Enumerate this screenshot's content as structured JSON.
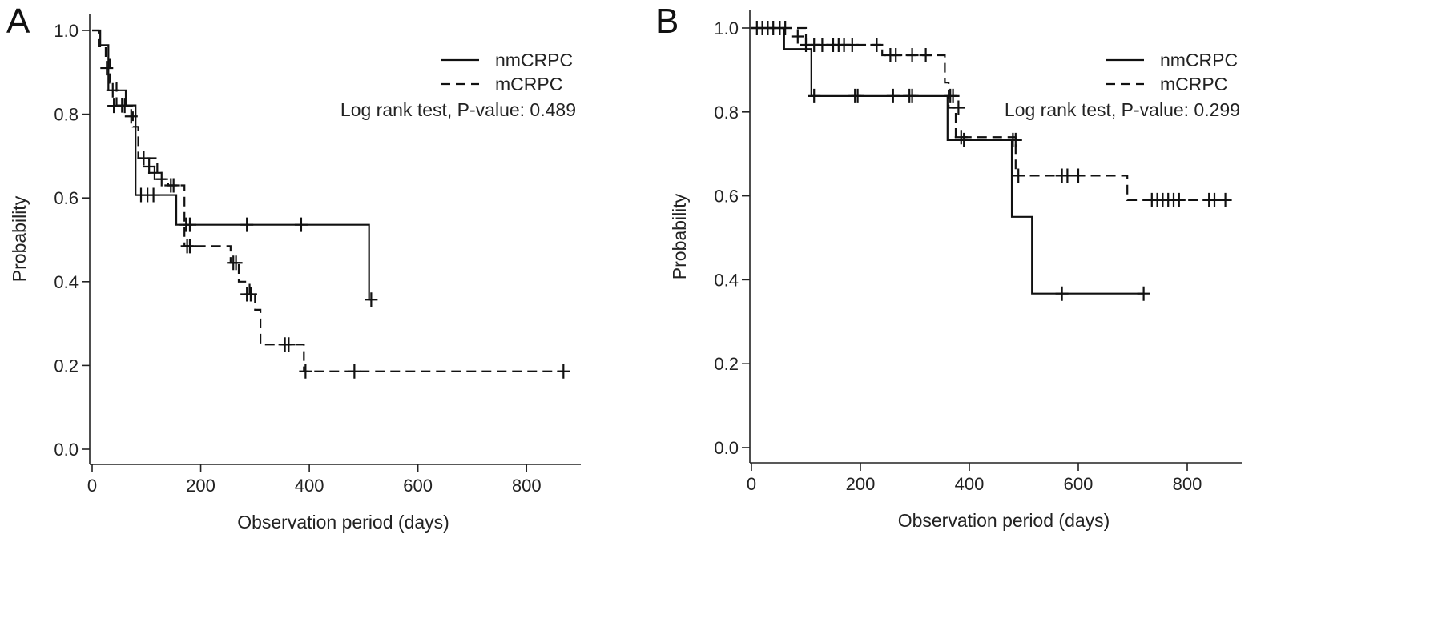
{
  "panels": [
    {
      "letter": "A",
      "chart_data": {
        "type": "line",
        "subtype": "kaplan-meier",
        "title": "",
        "xlabel": "Observation period (days)",
        "ylabel": "Probability",
        "xlim": [
          0,
          900
        ],
        "ylim": [
          0,
          1
        ],
        "xticks": [
          0,
          200,
          400,
          600,
          800
        ],
        "yticks": [
          0.0,
          0.2,
          0.4,
          0.6,
          0.8,
          1.0
        ],
        "xtick_labels": [
          "0",
          "200",
          "400",
          "600",
          "800"
        ],
        "ytick_labels": [
          "0.0",
          "0.2",
          "0.4",
          "0.6",
          "0.8",
          "1.0"
        ],
        "legend_position": "top-right",
        "annotation": "Log rank test, P-value: 0.489",
        "grid": false,
        "series": [
          {
            "name": "nmCRPC",
            "line_style": "solid",
            "steps": [
              [
                0,
                1.0
              ],
              [
                15,
                0.965
              ],
              [
                30,
                0.857
              ],
              [
                62,
                0.821
              ],
              [
                80,
                0.607
              ],
              [
                155,
                0.536
              ],
              [
                510,
                0.357
              ]
            ],
            "censored": [
              [
                38,
                0.857
              ],
              [
                55,
                0.821
              ],
              [
                90,
                0.607
              ],
              [
                102,
                0.607
              ],
              [
                113,
                0.607
              ],
              [
                173,
                0.536
              ],
              [
                180,
                0.536
              ],
              [
                285,
                0.536
              ],
              [
                385,
                0.536
              ],
              [
                514,
                0.357
              ]
            ]
          },
          {
            "name": "mCRPC",
            "line_style": "dashed",
            "steps": [
              [
                0,
                1.0
              ],
              [
                12,
                0.962
              ],
              [
                25,
                0.93
              ],
              [
                33,
                0.875
              ],
              [
                45,
                0.82
              ],
              [
                75,
                0.77
              ],
              [
                85,
                0.695
              ],
              [
                120,
                0.645
              ],
              [
                140,
                0.63
              ],
              [
                170,
                0.485
              ],
              [
                255,
                0.445
              ],
              [
                270,
                0.4
              ],
              [
                290,
                0.37
              ],
              [
                300,
                0.333
              ],
              [
                310,
                0.25
              ],
              [
                390,
                0.186
              ]
            ],
            "censored": [
              [
                27,
                0.91
              ],
              [
                40,
                0.82
              ],
              [
                60,
                0.82
              ],
              [
                72,
                0.795
              ],
              [
                95,
                0.695
              ],
              [
                105,
                0.675
              ],
              [
                115,
                0.66
              ],
              [
                128,
                0.645
              ],
              [
                145,
                0.63
              ],
              [
                150,
                0.63
              ],
              [
                175,
                0.485
              ],
              [
                180,
                0.485
              ],
              [
                260,
                0.445
              ],
              [
                265,
                0.445
              ],
              [
                285,
                0.37
              ],
              [
                292,
                0.37
              ],
              [
                355,
                0.25
              ],
              [
                362,
                0.25
              ],
              [
                393,
                0.186
              ],
              [
                483,
                0.186
              ],
              [
                868,
                0.186
              ]
            ]
          }
        ]
      }
    },
    {
      "letter": "B",
      "chart_data": {
        "type": "line",
        "subtype": "kaplan-meier",
        "title": "",
        "xlabel": "Observation period (days)",
        "ylabel": "Probability",
        "xlim": [
          0,
          900
        ],
        "ylim": [
          0,
          1
        ],
        "xticks": [
          0,
          200,
          400,
          600,
          800
        ],
        "yticks": [
          0.0,
          0.2,
          0.4,
          0.6,
          0.8,
          1.0
        ],
        "xtick_labels": [
          "0",
          "200",
          "400",
          "600",
          "800"
        ],
        "ytick_labels": [
          "0.0",
          "0.2",
          "0.4",
          "0.6",
          "0.8",
          "1.0"
        ],
        "legend_position": "top-right",
        "annotation": "Log rank test, P-value: 0.299",
        "grid": false,
        "series": [
          {
            "name": "nmCRPC",
            "line_style": "solid",
            "steps": [
              [
                0,
                1.0
              ],
              [
                60,
                0.95
              ],
              [
                110,
                0.838
              ],
              [
                360,
                0.733
              ],
              [
                478,
                0.55
              ],
              [
                515,
                0.367
              ]
            ],
            "censored": [
              [
                115,
                0.838
              ],
              [
                190,
                0.838
              ],
              [
                195,
                0.838
              ],
              [
                260,
                0.838
              ],
              [
                290,
                0.838
              ],
              [
                295,
                0.838
              ],
              [
                365,
                0.838
              ],
              [
                370,
                0.838
              ],
              [
                485,
                0.733
              ],
              [
                570,
                0.367
              ],
              [
                720,
                0.367
              ]
            ]
          },
          {
            "name": "mCRPC",
            "line_style": "dashed",
            "steps": [
              [
                0,
                1.0
              ],
              [
                100,
                0.96
              ],
              [
                240,
                0.935
              ],
              [
                355,
                0.87
              ],
              [
                362,
                0.81
              ],
              [
                375,
                0.74
              ],
              [
                485,
                0.648
              ],
              [
                690,
                0.59
              ]
            ],
            "censored": [
              [
                10,
                1.0
              ],
              [
                20,
                1.0
              ],
              [
                30,
                1.0
              ],
              [
                40,
                1.0
              ],
              [
                52,
                1.0
              ],
              [
                62,
                1.0
              ],
              [
                85,
                0.98
              ],
              [
                100,
                0.96
              ],
              [
                115,
                0.96
              ],
              [
                130,
                0.96
              ],
              [
                150,
                0.96
              ],
              [
                160,
                0.96
              ],
              [
                170,
                0.96
              ],
              [
                185,
                0.96
              ],
              [
                230,
                0.96
              ],
              [
                255,
                0.935
              ],
              [
                265,
                0.935
              ],
              [
                295,
                0.935
              ],
              [
                320,
                0.935
              ],
              [
                380,
                0.81
              ],
              [
                385,
                0.74
              ],
              [
                390,
                0.733
              ],
              [
                480,
                0.733
              ],
              [
                490,
                0.648
              ],
              [
                570,
                0.648
              ],
              [
                580,
                0.648
              ],
              [
                600,
                0.648
              ],
              [
                735,
                0.59
              ],
              [
                745,
                0.59
              ],
              [
                755,
                0.59
              ],
              [
                765,
                0.59
              ],
              [
                775,
                0.59
              ],
              [
                785,
                0.59
              ],
              [
                840,
                0.59
              ],
              [
                850,
                0.59
              ],
              [
                870,
                0.59
              ]
            ]
          }
        ]
      }
    }
  ]
}
